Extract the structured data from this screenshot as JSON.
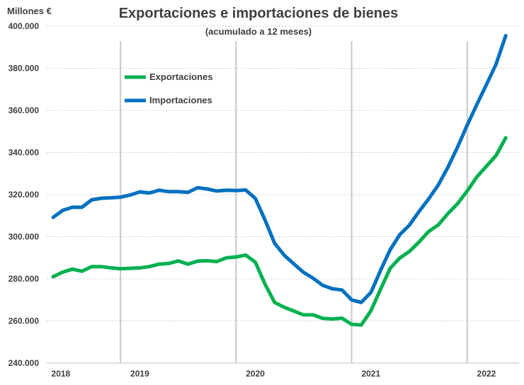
{
  "chart_data": {
    "type": "line",
    "title": "Exportaciones e importaciones de bienes",
    "subtitle": "(acumulado a 12 meses)",
    "ylabel": "Millones €",
    "xlabel": "",
    "ylim": [
      240000,
      400000
    ],
    "yticks": [
      240000,
      260000,
      280000,
      300000,
      320000,
      340000,
      360000,
      380000,
      400000
    ],
    "ytick_labels": [
      "240.000",
      "260.000",
      "280.000",
      "300.000",
      "320.000",
      "340.000",
      "360.000",
      "380.000",
      "400.000"
    ],
    "xlim": [
      0,
      51
    ],
    "x_labels": [
      {
        "label": "2018",
        "x": 0.8
      },
      {
        "label": "2019",
        "x": 9
      },
      {
        "label": "2020",
        "x": 21
      },
      {
        "label": "2021",
        "x": 33
      },
      {
        "label": "2022",
        "x": 45
      }
    ],
    "year_dividers": [
      7,
      19,
      31,
      43
    ],
    "legend_position": "top-left",
    "grid": true,
    "series": [
      {
        "name": "Exportaciones",
        "color": "#00b050",
        "values": [
          281000,
          283200,
          284600,
          283600,
          285800,
          285800,
          285200,
          284800,
          285000,
          285200,
          285800,
          287000,
          287300,
          288500,
          287000,
          288400,
          288600,
          288200,
          290000,
          290400,
          291300,
          287900,
          277500,
          268800,
          266500,
          264700,
          262900,
          262900,
          261200,
          260900,
          261300,
          258400,
          258100,
          264800,
          275000,
          285000,
          289900,
          293000,
          297500,
          302500,
          305600,
          311000,
          315700,
          321700,
          328400,
          333500,
          338600,
          347000
        ]
      },
      {
        "name": "Importaciones",
        "color": "#0070c0",
        "values": [
          309200,
          312500,
          314000,
          314000,
          317500,
          318300,
          318500,
          318800,
          319800,
          321300,
          320800,
          322100,
          321400,
          321400,
          321100,
          323300,
          322700,
          321700,
          322100,
          321900,
          322200,
          318200,
          308000,
          296900,
          291200,
          287100,
          283100,
          280300,
          276900,
          275300,
          274700,
          270000,
          268800,
          273500,
          284000,
          293800,
          301000,
          305500,
          312000,
          318000,
          324600,
          333000,
          342600,
          353000,
          362800,
          372300,
          382000,
          395500
        ]
      }
    ]
  }
}
